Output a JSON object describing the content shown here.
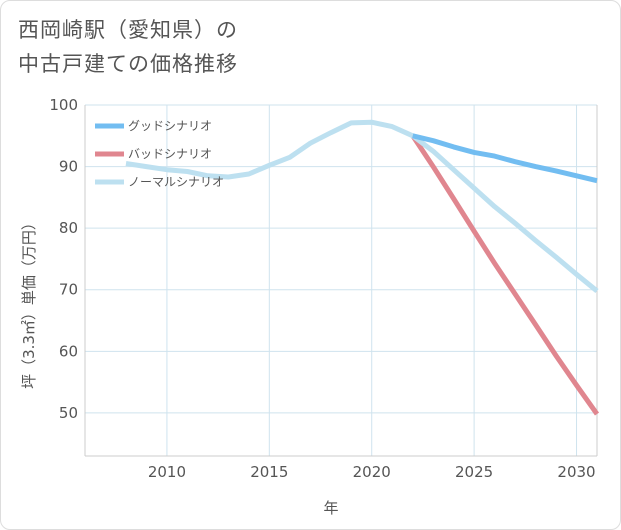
{
  "chart_data": {
    "type": "line",
    "title_lines": [
      "西岡崎駅（愛知県）の",
      "中古戸建ての価格推移"
    ],
    "xlabel": "年",
    "ylabel": "坪（3.3㎡）単価（万円）",
    "xlim": [
      2006,
      2031
    ],
    "ylim": [
      43,
      100
    ],
    "x_ticks": [
      2010,
      2015,
      2020,
      2025,
      2030
    ],
    "y_ticks": [
      50,
      60,
      70,
      80,
      90,
      100
    ],
    "legend_position": "top-left",
    "series": [
      {
        "name": "グッドシナリオ",
        "color": "#72bdf1",
        "x": [
          2022,
          2023,
          2024,
          2025,
          2026,
          2027,
          2028,
          2029,
          2030,
          2031
        ],
        "y": [
          95.0,
          94.2,
          93.2,
          92.3,
          91.7,
          90.8,
          90.0,
          89.3,
          88.5,
          87.7
        ]
      },
      {
        "name": "バッドシナリオ",
        "color": "#e0868f",
        "x": [
          2022,
          2023,
          2024,
          2025,
          2026,
          2027,
          2028,
          2029,
          2030,
          2031
        ],
        "y": [
          95.0,
          90.0,
          84.8,
          79.5,
          74.3,
          69.3,
          64.3,
          59.3,
          54.5,
          49.8
        ]
      },
      {
        "name": "ノーマルシナリオ",
        "color": "#bde0f0",
        "x": [
          2008,
          2009,
          2010,
          2011,
          2012,
          2013,
          2014,
          2015,
          2016,
          2017,
          2018,
          2019,
          2020,
          2021,
          2022,
          2023,
          2024,
          2025,
          2026,
          2027,
          2028,
          2029,
          2030,
          2031
        ],
        "y": [
          90.5,
          90.0,
          89.5,
          89.2,
          88.5,
          88.3,
          88.8,
          90.2,
          91.5,
          93.8,
          95.5,
          97.1,
          97.2,
          96.5,
          95.0,
          92.5,
          89.5,
          86.5,
          83.5,
          80.8,
          78.0,
          75.3,
          72.5,
          69.8
        ]
      }
    ]
  }
}
